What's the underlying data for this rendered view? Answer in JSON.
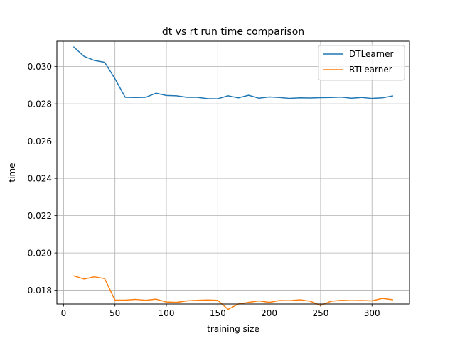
{
  "chart_data": {
    "type": "line",
    "title": "dt vs rt run time comparison",
    "xlabel": "training size",
    "ylabel": "time",
    "xlim": [
      -6.5,
      336.5
    ],
    "ylim": [
      0.01726,
      0.03136
    ],
    "xticks": [
      0,
      50,
      100,
      150,
      200,
      250,
      300
    ],
    "yticks": [
      0.018,
      0.02,
      0.022,
      0.024,
      0.026,
      0.028,
      0.03
    ],
    "ytick_labels": [
      "0.018",
      "0.020",
      "0.022",
      "0.024",
      "0.026",
      "0.028",
      "0.030"
    ],
    "grid": true,
    "legend_position": "top-right",
    "x": [
      10,
      20,
      30,
      40,
      50,
      60,
      70,
      80,
      90,
      100,
      110,
      120,
      130,
      140,
      150,
      160,
      170,
      180,
      190,
      200,
      210,
      220,
      230,
      240,
      250,
      260,
      270,
      280,
      290,
      300,
      310,
      320
    ],
    "series": [
      {
        "name": "DTLearner",
        "color": "#1f77b4",
        "values": [
          0.03105,
          0.03055,
          0.03033,
          0.03023,
          0.02935,
          0.02835,
          0.02834,
          0.02835,
          0.02857,
          0.02845,
          0.02843,
          0.02835,
          0.02835,
          0.02828,
          0.02827,
          0.02843,
          0.02832,
          0.02846,
          0.0283,
          0.02837,
          0.02834,
          0.02829,
          0.02832,
          0.02831,
          0.02833,
          0.02834,
          0.02836,
          0.0283,
          0.02834,
          0.02829,
          0.02832,
          0.02842
        ]
      },
      {
        "name": "RTLearner",
        "color": "#ff7f0e",
        "values": [
          0.01877,
          0.0186,
          0.01872,
          0.01862,
          0.01747,
          0.01747,
          0.01751,
          0.01746,
          0.01752,
          0.01737,
          0.01735,
          0.01743,
          0.01746,
          0.01748,
          0.01746,
          0.01697,
          0.01726,
          0.01735,
          0.01743,
          0.01735,
          0.01745,
          0.01744,
          0.01749,
          0.01741,
          0.01718,
          0.01741,
          0.01746,
          0.01744,
          0.01745,
          0.01743,
          0.01756,
          0.01749
        ]
      }
    ]
  }
}
